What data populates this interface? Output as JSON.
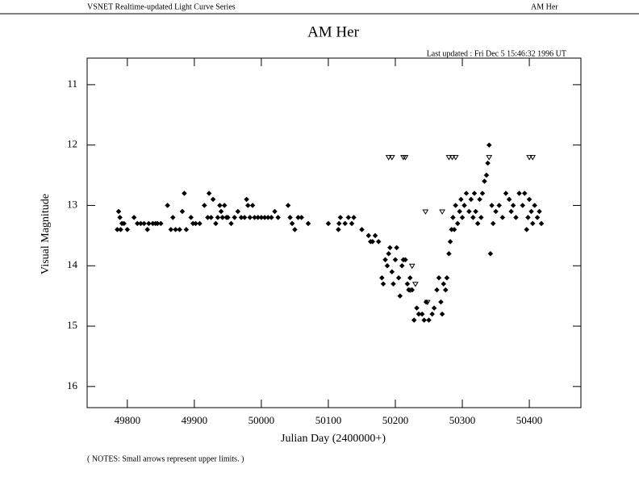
{
  "header": {
    "left": "VSNET Realtime-updated Light Curve Series",
    "right": "AM Her"
  },
  "chart_data": {
    "type": "scatter",
    "title": "AM Her",
    "subtitle": "Last updated :  Fri Dec 5 15:46:32 1996 UT",
    "x_label": "Julian Day (2400000+)",
    "y_label": "Visual Magnitude",
    "y_inverted": true,
    "xlim": [
      49740,
      50477
    ],
    "ylim": [
      10.56,
      16.35
    ],
    "xticks": [
      49800,
      49900,
      50000,
      50100,
      50200,
      50300,
      50400
    ],
    "yticks": [
      11,
      12,
      13,
      14,
      15,
      16
    ],
    "series": [
      {
        "marker": "diamond",
        "color": "#000000",
        "x": [
          49785,
          49787,
          49789,
          49790,
          49792,
          49795,
          49800,
          49810,
          49815,
          49820,
          49825,
          49830,
          49832,
          49838,
          49842,
          49845,
          49850,
          49860,
          49865,
          49868,
          49872,
          49878,
          49882,
          49885,
          49888,
          49895,
          49898,
          49902,
          49908,
          49915,
          49920,
          49922,
          49925,
          49928,
          49932,
          49935,
          49938,
          49940,
          49942,
          49945,
          49948,
          49950,
          49955,
          49960,
          49965,
          49970,
          49975,
          49978,
          49980,
          49983,
          49987,
          49990,
          49995,
          50000,
          50005,
          50010,
          50015,
          50020,
          50025,
          50040,
          50043,
          50046,
          50050,
          50055,
          50060,
          50070,
          50100,
          50115,
          50116,
          50118,
          50125,
          50130,
          50135,
          50138,
          50150,
          50160,
          50163,
          50166,
          50170,
          50175,
          50180,
          50182,
          50185,
          50188,
          50190,
          50192,
          50195,
          50197,
          50200,
          50202,
          50205,
          50207,
          50210,
          50212,
          50215,
          50218,
          50220,
          50222,
          50225,
          50228,
          50232,
          50235,
          50240,
          50243,
          50246,
          50250,
          50255,
          50258,
          50262,
          50265,
          50268,
          50270,
          50272,
          50275,
          50277,
          50280,
          50282,
          50284,
          50286,
          50288,
          50290,
          50293,
          50296,
          50298,
          50300,
          50303,
          50306,
          50310,
          50313,
          50316,
          50318,
          50320,
          50323,
          50326,
          50328,
          50330,
          50333,
          50336,
          50338,
          50340,
          50342,
          50344,
          50346,
          50350,
          50355,
          50360,
          50365,
          50370,
          50373,
          50376,
          50380,
          50385,
          50390,
          50393,
          50396,
          50398,
          50400,
          50403,
          50405,
          50408,
          50412,
          50415,
          50418
        ],
        "values": [
          13.4,
          13.1,
          13.2,
          13.4,
          13.3,
          13.3,
          13.4,
          13.2,
          13.3,
          13.3,
          13.3,
          13.4,
          13.3,
          13.3,
          13.3,
          13.3,
          13.3,
          13.0,
          13.4,
          13.2,
          13.4,
          13.4,
          13.1,
          12.8,
          13.4,
          13.2,
          13.3,
          13.3,
          13.3,
          13.0,
          13.2,
          12.8,
          13.2,
          12.9,
          13.3,
          13.2,
          13.0,
          13.1,
          13.2,
          13.0,
          13.2,
          13.2,
          13.3,
          13.2,
          13.1,
          13.2,
          13.2,
          12.9,
          13.0,
          13.2,
          13.0,
          13.2,
          13.2,
          13.2,
          13.2,
          13.2,
          13.2,
          13.1,
          13.2,
          13.0,
          13.2,
          13.3,
          13.4,
          13.2,
          13.2,
          13.3,
          13.3,
          13.4,
          13.3,
          13.2,
          13.3,
          13.2,
          13.3,
          13.2,
          13.4,
          13.5,
          13.6,
          13.6,
          13.5,
          13.6,
          14.2,
          14.3,
          13.9,
          14.0,
          13.8,
          13.7,
          14.1,
          14.3,
          13.9,
          13.7,
          14.2,
          14.5,
          14.0,
          13.9,
          13.9,
          14.3,
          14.4,
          14.2,
          14.4,
          14.9,
          14.7,
          14.8,
          14.8,
          14.9,
          14.6,
          14.9,
          14.8,
          14.7,
          14.4,
          14.2,
          14.6,
          14.8,
          14.3,
          14.4,
          14.2,
          13.8,
          13.6,
          13.4,
          13.2,
          13.4,
          13.0,
          13.3,
          13.1,
          12.9,
          13.2,
          13.0,
          12.8,
          13.1,
          12.9,
          13.2,
          12.8,
          13.1,
          13.3,
          12.9,
          13.2,
          12.8,
          12.6,
          12.5,
          12.3,
          12.0,
          13.8,
          13.0,
          13.3,
          13.1,
          13.0,
          13.2,
          12.8,
          12.9,
          13.1,
          13.0,
          13.2,
          12.8,
          13.0,
          12.8,
          13.4,
          13.2,
          12.9,
          13.1,
          13.3,
          13.0,
          13.2,
          13.1,
          13.3
        ]
      },
      {
        "marker": "triangle-down",
        "color": "#000000",
        "x": [
          50190,
          50195,
          50212,
          50215,
          50222,
          50225,
          50230,
          50245,
          50248,
          50270,
          50280,
          50285,
          50290,
          50340,
          50400,
          50405
        ],
        "values": [
          12.2,
          12.2,
          12.2,
          12.2,
          14.4,
          14.0,
          14.3,
          13.1,
          14.6,
          13.1,
          12.2,
          12.2,
          12.2,
          12.2,
          12.2,
          12.2
        ]
      }
    ]
  },
  "note": "( NOTES: Small arrows represent upper limits. )"
}
